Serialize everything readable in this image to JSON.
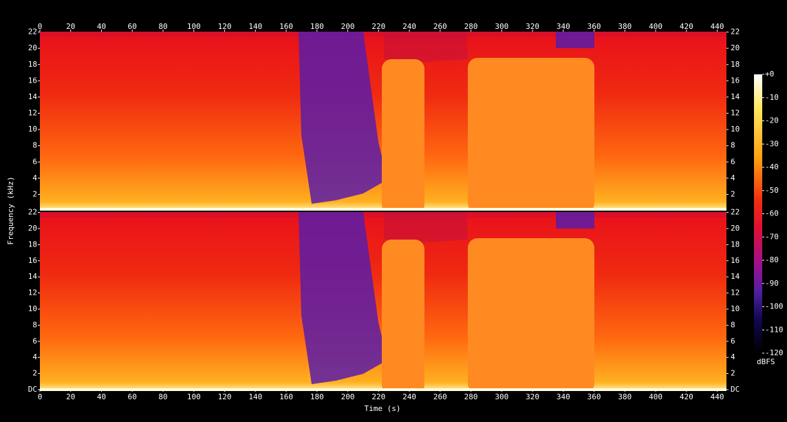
{
  "chart_data": {
    "type": "spectrogram",
    "x_label": "Time (s)",
    "y_label": "Frequency (kHz)",
    "colorbar_label": "dBFS",
    "channels": 2,
    "xlim": [
      0,
      446
    ],
    "xticks": [
      0,
      20,
      40,
      60,
      80,
      100,
      120,
      140,
      160,
      180,
      200,
      220,
      240,
      260,
      280,
      300,
      320,
      340,
      360,
      380,
      400,
      420,
      440
    ],
    "ylim": [
      0,
      22.05
    ],
    "yticks": [
      {
        "value": 0,
        "label": "DC"
      },
      2,
      4,
      6,
      8,
      10,
      12,
      14,
      16,
      18,
      20,
      22
    ],
    "clim": [
      -120,
      0
    ],
    "cticks": [
      {
        "value": 0,
        "label": "+0"
      },
      -10,
      -20,
      -30,
      -40,
      -50,
      -60,
      -70,
      -80,
      -90,
      -100,
      -110,
      -120
    ]
  }
}
